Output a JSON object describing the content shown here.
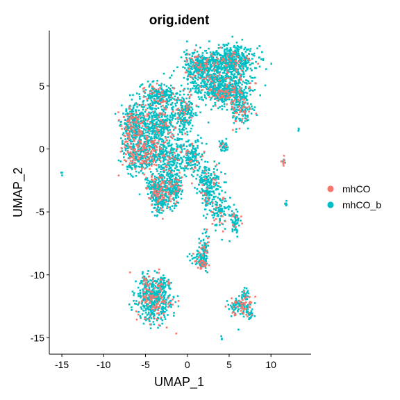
{
  "chart_data": {
    "type": "scatter",
    "title": "orig.ident",
    "xlabel": "UMAP_1",
    "ylabel": "UMAP_2",
    "xlim": [
      -16.5,
      14.8
    ],
    "ylim": [
      -16.3,
      9.4
    ],
    "x_ticks": [
      -15,
      -10,
      -5,
      0,
      5,
      10
    ],
    "y_ticks": [
      -15,
      -10,
      -5,
      0,
      5
    ],
    "grid": false,
    "legend": "right",
    "series": [
      {
        "name": "mhCO",
        "color": "#F8766D"
      },
      {
        "name": "mhCO_b",
        "color": "#00BFC4"
      }
    ],
    "clusters": [
      {
        "cx": 5.0,
        "cy": 7.0,
        "rx": 2.8,
        "ry": 1.1,
        "n": 520,
        "mix": 0.08
      },
      {
        "cx": 1.5,
        "cy": 6.6,
        "rx": 1.8,
        "ry": 1.0,
        "n": 300,
        "mix": 0.15
      },
      {
        "cx": 3.8,
        "cy": 5.0,
        "rx": 3.2,
        "ry": 1.3,
        "n": 480,
        "mix": 0.12
      },
      {
        "cx": 6.5,
        "cy": 3.5,
        "rx": 1.2,
        "ry": 1.8,
        "n": 220,
        "mix": 0.2
      },
      {
        "cx": 4.5,
        "cy": 4.4,
        "rx": 1.4,
        "ry": 0.7,
        "n": 120,
        "mix": 0.3
      },
      {
        "cx": -3.2,
        "cy": 4.2,
        "rx": 2.0,
        "ry": 0.9,
        "n": 260,
        "mix": 0.12
      },
      {
        "cx": -6.5,
        "cy": 2.0,
        "rx": 1.3,
        "ry": 1.6,
        "n": 300,
        "mix": 0.3
      },
      {
        "cx": -3.5,
        "cy": 2.0,
        "rx": 2.3,
        "ry": 1.3,
        "n": 360,
        "mix": 0.15
      },
      {
        "cx": -0.3,
        "cy": 2.8,
        "rx": 1.2,
        "ry": 1.4,
        "n": 180,
        "mix": 0.1
      },
      {
        "cx": -5.5,
        "cy": -0.3,
        "rx": 2.1,
        "ry": 1.6,
        "n": 420,
        "mix": 0.28
      },
      {
        "cx": -2.5,
        "cy": -0.8,
        "rx": 1.8,
        "ry": 1.3,
        "n": 260,
        "mix": 0.1
      },
      {
        "cx": 0.5,
        "cy": -0.5,
        "rx": 1.3,
        "ry": 1.2,
        "n": 160,
        "mix": 0.1
      },
      {
        "cx": -3.5,
        "cy": -3.1,
        "rx": 1.5,
        "ry": 0.8,
        "n": 200,
        "mix": 0.3
      },
      {
        "cx": -1.6,
        "cy": -3.0,
        "rx": 0.9,
        "ry": 1.1,
        "n": 140,
        "mix": 0.12
      },
      {
        "cx": -3.0,
        "cy": -4.2,
        "rx": 1.3,
        "ry": 0.8,
        "n": 140,
        "mix": 0.2
      },
      {
        "cx": 2.5,
        "cy": -2.5,
        "rx": 1.5,
        "ry": 1.1,
        "n": 160,
        "mix": 0.1
      },
      {
        "cx": 3.8,
        "cy": -4.8,
        "rx": 1.0,
        "ry": 1.4,
        "n": 110,
        "mix": 0.1
      },
      {
        "cx": 5.8,
        "cy": -5.8,
        "rx": 0.6,
        "ry": 1.0,
        "n": 60,
        "mix": 0.1
      },
      {
        "cx": 2.4,
        "cy": -3.8,
        "rx": 0.5,
        "ry": 1.3,
        "n": 60,
        "mix": 0.1
      },
      {
        "cx": 4.3,
        "cy": 0.2,
        "rx": 0.5,
        "ry": 0.4,
        "n": 40,
        "mix": 0.05
      },
      {
        "cx": 2.0,
        "cy": -7.8,
        "rx": 0.5,
        "ry": 1.3,
        "n": 70,
        "mix": 0.15
      },
      {
        "cx": 1.3,
        "cy": -8.7,
        "rx": 1.0,
        "ry": 0.5,
        "n": 50,
        "mix": 0.35
      },
      {
        "cx": 1.8,
        "cy": -9.2,
        "rx": 0.5,
        "ry": 0.4,
        "n": 40,
        "mix": 0.35
      },
      {
        "cx": -4.0,
        "cy": -12.0,
        "rx": 1.9,
        "ry": 1.6,
        "n": 480,
        "mix": 0.18
      },
      {
        "cx": -4.9,
        "cy": -10.5,
        "rx": 0.6,
        "ry": 0.6,
        "n": 40,
        "mix": 0.15
      },
      {
        "cx": -2.7,
        "cy": -10.6,
        "rx": 0.6,
        "ry": 0.5,
        "n": 30,
        "mix": 0.15
      },
      {
        "cx": 6.5,
        "cy": -12.5,
        "rx": 1.2,
        "ry": 0.7,
        "n": 130,
        "mix": 0.25
      },
      {
        "cx": 7.0,
        "cy": -11.5,
        "rx": 0.4,
        "ry": 0.5,
        "n": 25,
        "mix": 0.15
      },
      {
        "cx": 7.5,
        "cy": -13.2,
        "rx": 0.4,
        "ry": 0.4,
        "n": 20,
        "mix": 0.15
      },
      {
        "cx": 11.5,
        "cy": -1.0,
        "rx": 0.2,
        "ry": 0.4,
        "n": 14,
        "mix": 0.3
      },
      {
        "cx": 11.8,
        "cy": -4.4,
        "rx": 0.15,
        "ry": 0.2,
        "n": 7,
        "mix": 0.0
      },
      {
        "cx": 13.3,
        "cy": 1.6,
        "rx": 0.08,
        "ry": 0.1,
        "n": 3,
        "mix": 0.0
      },
      {
        "cx": -15.0,
        "cy": -2.0,
        "rx": 0.1,
        "ry": 0.1,
        "n": 3,
        "mix": 0.0
      },
      {
        "cx": 4.1,
        "cy": -15.1,
        "rx": 0.1,
        "ry": 0.15,
        "n": 4,
        "mix": 0.0
      }
    ]
  }
}
